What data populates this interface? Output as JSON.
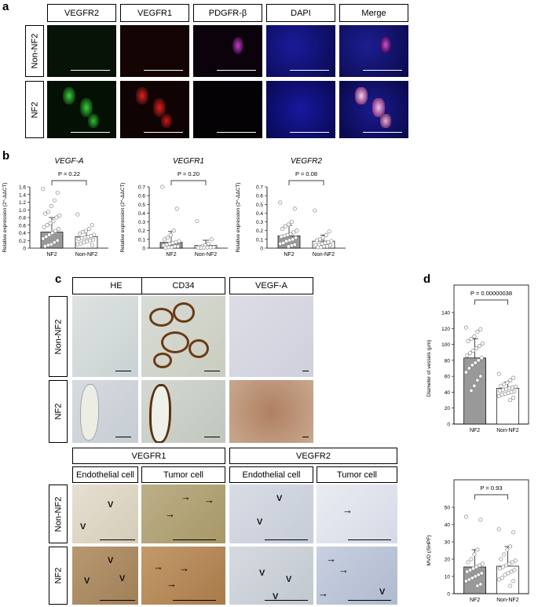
{
  "panel_labels": {
    "a": "a",
    "b": "b",
    "c": "c",
    "d": "d"
  },
  "panel_a": {
    "headers": [
      "VEGFR2",
      "VEGFR1",
      "PDGFR-β",
      "DAPI",
      "Merge"
    ],
    "rows": [
      "Non-NF2",
      "NF2"
    ]
  },
  "panel_c": {
    "headers_top": [
      "HE",
      "CD34",
      "VEGF-A"
    ],
    "rows": [
      "Non-NF2",
      "NF2"
    ],
    "group1": "VEGFR1",
    "group2": "VEGFR2",
    "sub": [
      "Endothelial cell",
      "Tumor cell",
      "Endothelial cell",
      "Tumor cell"
    ],
    "v_mark": "V",
    "arrow": "→"
  },
  "chart_data": [
    {
      "type": "bar",
      "title": "VEGF-A",
      "ylabel": "Relative expression (2^-ΔΔCT)",
      "categories": [
        "NF2",
        "Non-NF2"
      ],
      "values": [
        0.42,
        0.3
      ],
      "error_upper": [
        0.8,
        0.46
      ],
      "ylim": [
        0,
        1.6
      ],
      "yticks": [
        "0",
        "0.2",
        "0.4",
        "0.6",
        "0.8",
        "1.0",
        "1.2",
        "1.4",
        "1.6"
      ],
      "p_value": "P = 0.22",
      "points": [
        [
          1.55,
          1.45,
          1.25,
          1.1,
          0.95,
          0.9,
          0.85,
          0.8,
          0.7,
          0.65,
          0.6,
          0.55,
          0.5,
          0.45,
          0.4,
          0.35,
          0.3,
          0.25,
          0.2,
          0.15,
          0.1,
          0.08,
          0.05
        ],
        [
          0.88,
          0.6,
          0.5,
          0.45,
          0.42,
          0.38,
          0.35,
          0.32,
          0.3,
          0.28,
          0.26,
          0.24,
          0.22,
          0.2,
          0.18,
          0.15,
          0.12,
          0.1,
          0.08
        ]
      ]
    },
    {
      "type": "bar",
      "title": "VEGFR1",
      "ylabel": "Relative expression (2^-ΔΔCT)",
      "categories": [
        "NF2",
        "Non-NF2"
      ],
      "values": [
        0.065,
        0.03
      ],
      "error_upper": [
        0.19,
        0.09
      ],
      "ylim": [
        0,
        0.7
      ],
      "yticks": [
        "0",
        "0.1",
        "0.2",
        "0.3",
        "0.4",
        "0.5",
        "0.6",
        "0.7"
      ],
      "p_value": "P = 0.20",
      "points": [
        [
          0.73,
          0.45,
          0.2,
          0.15,
          0.12,
          0.1,
          0.08,
          0.07,
          0.06,
          0.05,
          0.04,
          0.03,
          0.02,
          0.02,
          0.01,
          0.01,
          0.005
        ],
        [
          0.31,
          0.1,
          0.05,
          0.03,
          0.02,
          0.015,
          0.01,
          0.01,
          0.008,
          0.005,
          0.004,
          0.003
        ]
      ]
    },
    {
      "type": "bar",
      "title": "VEGFR2",
      "ylabel": "Relative expression (2^-ΔΔCT)",
      "categories": [
        "NF2",
        "Non-NF2"
      ],
      "values": [
        0.14,
        0.08
      ],
      "error_upper": [
        0.26,
        0.15
      ],
      "ylim": [
        0,
        0.7
      ],
      "yticks": [
        "0",
        "0.1",
        "0.2",
        "0.3",
        "0.4",
        "0.5",
        "0.6",
        "0.7"
      ],
      "p_value": "P = 0.08",
      "points": [
        [
          0.52,
          0.45,
          0.3,
          0.27,
          0.25,
          0.22,
          0.2,
          0.18,
          0.16,
          0.15,
          0.14,
          0.13,
          0.12,
          0.1,
          0.09,
          0.08,
          0.06,
          0.05,
          0.04,
          0.03,
          0.02
        ],
        [
          0.43,
          0.19,
          0.15,
          0.12,
          0.1,
          0.09,
          0.08,
          0.07,
          0.06,
          0.05,
          0.04,
          0.03,
          0.03,
          0.02,
          0.02,
          0.01,
          0.01
        ]
      ]
    },
    {
      "type": "bar",
      "title": "",
      "ylabel": "Diameter of vessels (μm)",
      "categories": [
        "NF2",
        "Non-NF2"
      ],
      "values": [
        83,
        45
      ],
      "error_upper": [
        107,
        53
      ],
      "ylim": [
        0,
        140
      ],
      "yticks": [
        "0",
        "20",
        "40",
        "60",
        "80",
        "100",
        "120",
        "140"
      ],
      "p_value": "P = 0.00000038",
      "points": [
        [
          121,
          119,
          116,
          110,
          107,
          104,
          101,
          98,
          95,
          92,
          89,
          86,
          83,
          80,
          77,
          74,
          70,
          65,
          60,
          55,
          48,
          42
        ],
        [
          63,
          58,
          55,
          52,
          50,
          48,
          47,
          46,
          45,
          44,
          43,
          42,
          41,
          40,
          39,
          38,
          37,
          35,
          33,
          30
        ]
      ]
    },
    {
      "type": "bar",
      "title": "",
      "ylabel": "MVD (/5HPF)",
      "categories": [
        "NF2",
        "Non-NF2"
      ],
      "values": [
        17,
        17.5
      ],
      "error_upper": [
        28,
        30
      ],
      "ylim": [
        0,
        55
      ],
      "yticks": [
        "0",
        "10",
        "20",
        "30",
        "40",
        "50"
      ],
      "p_value": "P = 0.93",
      "points": [
        [
          49,
          47,
          28,
          25,
          22,
          20,
          19,
          18,
          17,
          16,
          15,
          14,
          13,
          12,
          11,
          10,
          9,
          8,
          6,
          5
        ],
        [
          41,
          39,
          30,
          28,
          25,
          22,
          21,
          20,
          19,
          18,
          17,
          16,
          15,
          14,
          13,
          12,
          10,
          9,
          8,
          5
        ]
      ]
    }
  ]
}
